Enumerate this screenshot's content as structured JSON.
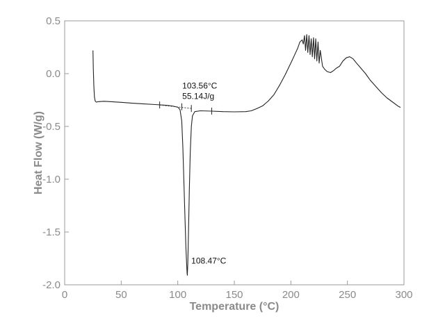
{
  "chart_data": {
    "type": "line",
    "xlabel": "Temperature (°C)",
    "ylabel": "Heat Flow (W/g)",
    "xlim": [
      0,
      300
    ],
    "ylim": [
      -2.0,
      0.5
    ],
    "x_ticks": [
      0,
      50,
      100,
      150,
      200,
      250,
      300
    ],
    "y_ticks": [
      0.5,
      0.0,
      -0.5,
      -1.0,
      -1.5,
      -2.0
    ],
    "x_tick_labels": [
      "0",
      "50",
      "100",
      "150",
      "200",
      "250",
      "300"
    ],
    "y_tick_labels": [
      "0.5",
      "0.0",
      "-0.5",
      "-1.0",
      "-1.5",
      "-2.0"
    ],
    "grid": false,
    "legend": "none",
    "series": [
      {
        "x": [
          25,
          25.3,
          25.8,
          26.3,
          27,
          28,
          30,
          35,
          40,
          50,
          60,
          70,
          80,
          90,
          95,
          100,
          102,
          103.5,
          104.5,
          105.5,
          106.5,
          107.2,
          107.8,
          108.2,
          108.47,
          108.9,
          109.5,
          110.2,
          111,
          112,
          113,
          115,
          120,
          130,
          140,
          150,
          160,
          165,
          170,
          175,
          180,
          185,
          190,
          195,
          200,
          203,
          206,
          208,
          210,
          211,
          212,
          213,
          214,
          215,
          216,
          217,
          218,
          219,
          220,
          221,
          222,
          223,
          224,
          225,
          226,
          228,
          230,
          232,
          235,
          238,
          240,
          243,
          246,
          249,
          252,
          255,
          258,
          262,
          266,
          270,
          275,
          280,
          285,
          290,
          295,
          297
        ],
        "y": [
          0.22,
          0.05,
          -0.12,
          -0.22,
          -0.26,
          -0.27,
          -0.265,
          -0.262,
          -0.265,
          -0.272,
          -0.28,
          -0.287,
          -0.293,
          -0.3,
          -0.306,
          -0.318,
          -0.34,
          -0.45,
          -0.7,
          -1.05,
          -1.4,
          -1.65,
          -1.8,
          -1.88,
          -1.91,
          -1.8,
          -1.5,
          -1.1,
          -0.75,
          -0.5,
          -0.4,
          -0.36,
          -0.352,
          -0.355,
          -0.36,
          -0.362,
          -0.36,
          -0.352,
          -0.33,
          -0.305,
          -0.26,
          -0.2,
          -0.11,
          -0.01,
          0.1,
          0.17,
          0.24,
          0.3,
          0.32,
          0.28,
          0.36,
          0.22,
          0.37,
          0.2,
          0.36,
          0.18,
          0.33,
          0.16,
          0.34,
          0.14,
          0.33,
          0.12,
          0.3,
          0.1,
          0.22,
          0.07,
          0.04,
          0.02,
          0.01,
          0.03,
          0.05,
          0.07,
          0.12,
          0.15,
          0.16,
          0.14,
          0.1,
          0.05,
          0.0,
          -0.06,
          -0.12,
          -0.18,
          -0.23,
          -0.27,
          -0.31,
          -0.32
        ]
      }
    ],
    "baseline": {
      "x": [
        84,
        112
      ],
      "y": [
        -0.297,
        -0.33
      ]
    },
    "markers": [
      {
        "x": 84,
        "y": -0.297
      },
      {
        "x": 112,
        "y": -0.33
      },
      {
        "x": 103.56,
        "y": -0.314
      },
      {
        "x": 130,
        "y": -0.355
      }
    ],
    "annotations": [
      {
        "text": "103.56°C",
        "x": 104,
        "y": -0.14
      },
      {
        "text": "55.14J/g",
        "x": 104,
        "y": -0.24
      },
      {
        "text": "108.47°C",
        "x": 112,
        "y": -1.8
      }
    ]
  }
}
